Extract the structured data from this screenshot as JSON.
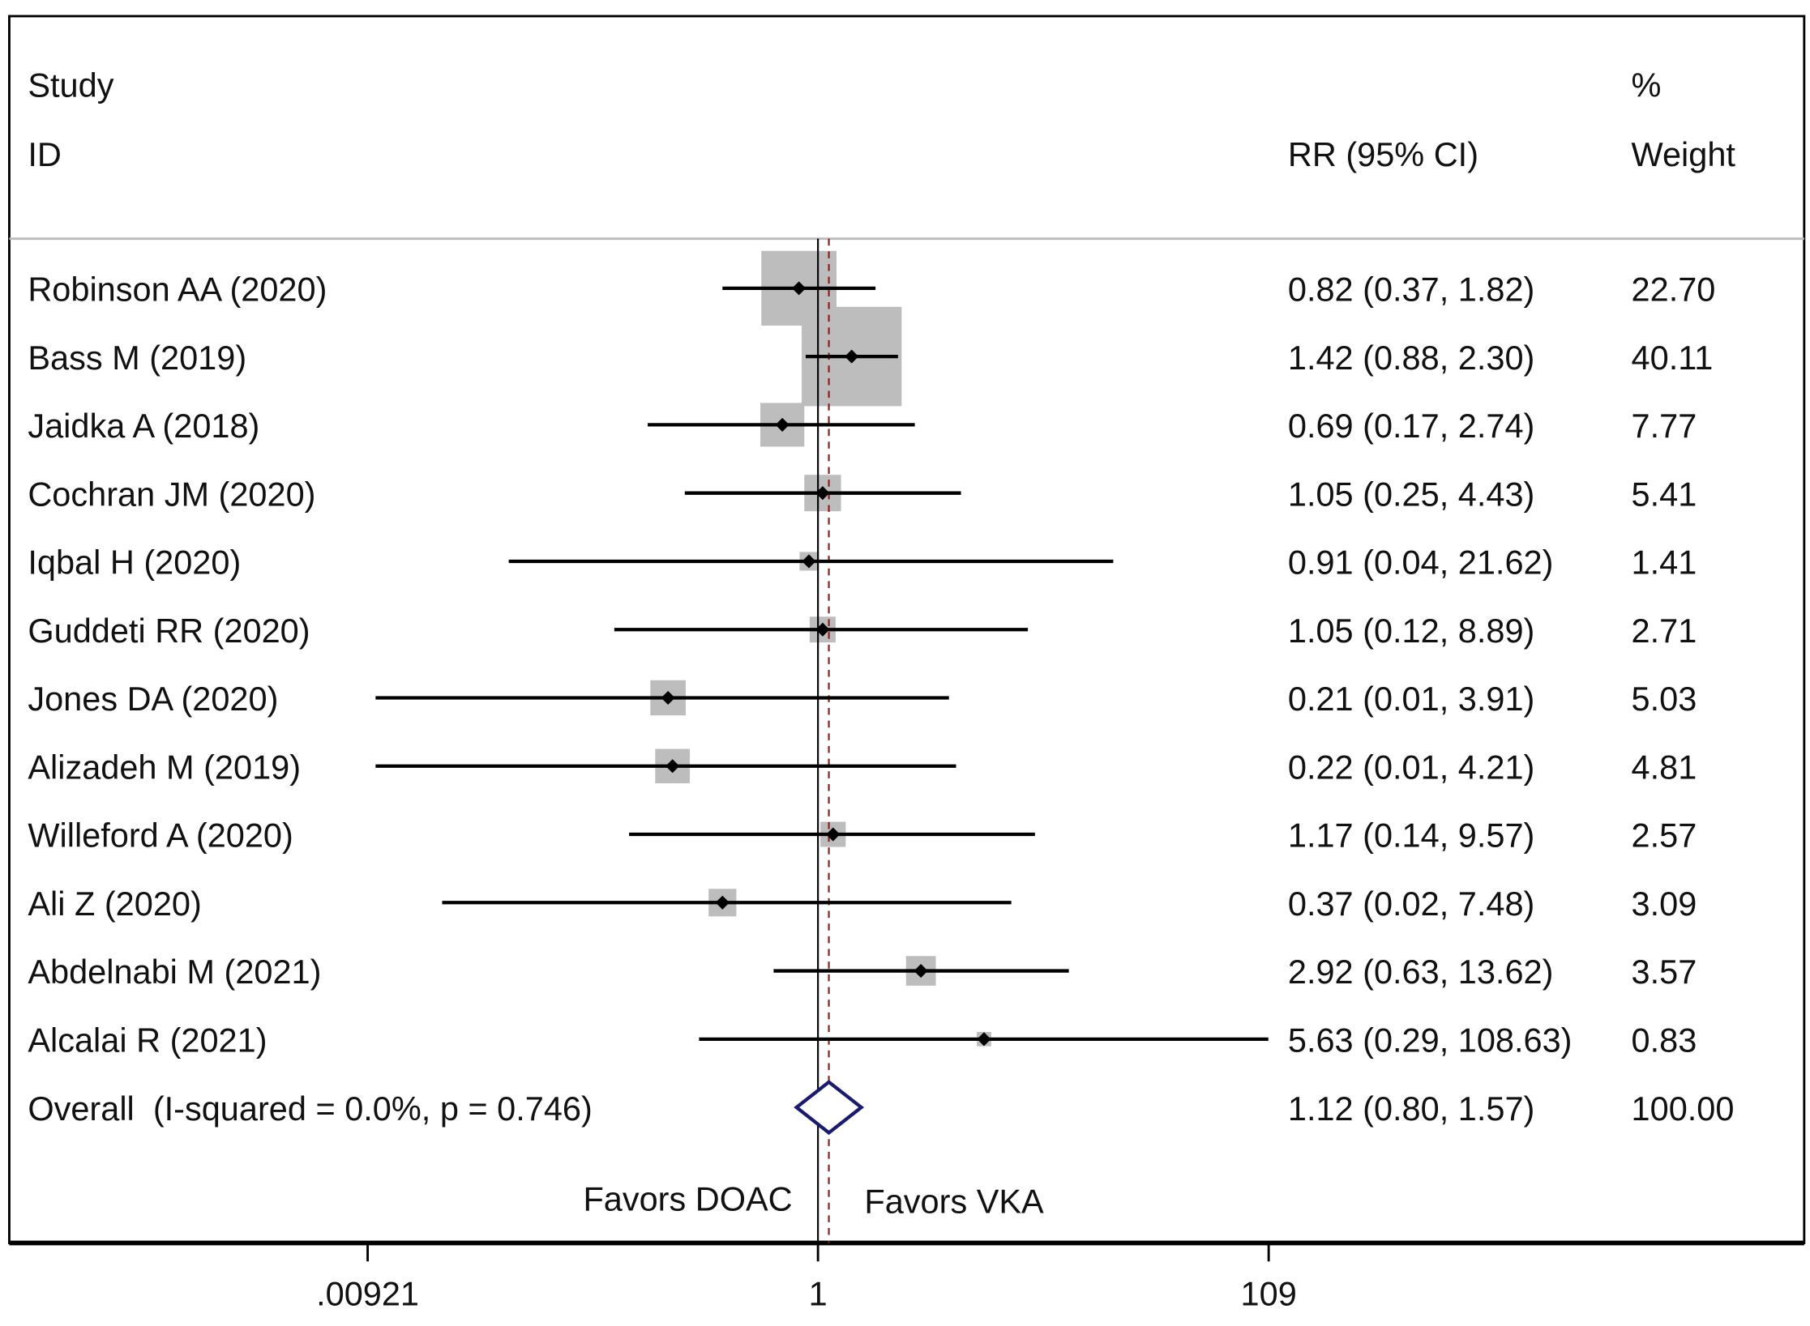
{
  "chart_data": {
    "type": "forest",
    "headers": {
      "study_line1": "Study",
      "study_line2": "ID",
      "rr": "RR (95% CI)",
      "weight_line1": "%",
      "weight_line2": "Weight"
    },
    "studies": [
      {
        "id": "Robinson AA (2020)",
        "rr": 0.82,
        "lo": 0.37,
        "hi": 1.82,
        "label": "0.82 (0.37, 1.82)",
        "weight": "22.70"
      },
      {
        "id": "Bass M (2019)",
        "rr": 1.42,
        "lo": 0.88,
        "hi": 2.3,
        "label": "1.42 (0.88, 2.30)",
        "weight": "40.11"
      },
      {
        "id": "Jaidka A (2018)",
        "rr": 0.69,
        "lo": 0.17,
        "hi": 2.74,
        "label": "0.69 (0.17, 2.74)",
        "weight": "7.77"
      },
      {
        "id": "Cochran JM (2020)",
        "rr": 1.05,
        "lo": 0.25,
        "hi": 4.43,
        "label": "1.05 (0.25, 4.43)",
        "weight": "5.41"
      },
      {
        "id": "Iqbal H (2020)",
        "rr": 0.91,
        "lo": 0.04,
        "hi": 21.62,
        "label": "0.91 (0.04, 21.62)",
        "weight": "1.41"
      },
      {
        "id": "Guddeti RR (2020)",
        "rr": 1.05,
        "lo": 0.12,
        "hi": 8.89,
        "label": "1.05 (0.12, 8.89)",
        "weight": "2.71"
      },
      {
        "id": "Jones DA (2020)",
        "rr": 0.21,
        "lo": 0.01,
        "hi": 3.91,
        "label": "0.21 (0.01, 3.91)",
        "weight": "5.03"
      },
      {
        "id": "Alizadeh M (2019)",
        "rr": 0.22,
        "lo": 0.01,
        "hi": 4.21,
        "label": "0.22 (0.01, 4.21)",
        "weight": "4.81"
      },
      {
        "id": "Willeford A (2020)",
        "rr": 1.17,
        "lo": 0.14,
        "hi": 9.57,
        "label": "1.17 (0.14, 9.57)",
        "weight": "2.57"
      },
      {
        "id": "Ali Z (2020)",
        "rr": 0.37,
        "lo": 0.02,
        "hi": 7.48,
        "label": "0.37 (0.02, 7.48)",
        "weight": "3.09"
      },
      {
        "id": "Abdelnabi M (2021)",
        "rr": 2.92,
        "lo": 0.63,
        "hi": 13.62,
        "label": "2.92 (0.63, 13.62)",
        "weight": "3.57"
      },
      {
        "id": "Alcalai R (2021)",
        "rr": 5.63,
        "lo": 0.29,
        "hi": 108.63,
        "label": "5.63 (0.29, 108.63)",
        "weight": "0.83"
      }
    ],
    "overall": {
      "id": "Overall  (I-squared = 0.0%, p = 0.746)",
      "rr": 1.12,
      "lo": 0.8,
      "hi": 1.57,
      "label": "1.12 (0.80, 1.57)",
      "weight": "100.00"
    },
    "favors_left": "Favors DOAC",
    "favors_right": "Favors VKA",
    "x_ticks": [
      {
        "value": 0.00921,
        "label": ".00921"
      },
      {
        "value": 1,
        "label": "1"
      },
      {
        "value": 109,
        "label": "109"
      }
    ],
    "xlim": [
      0.00921,
      109
    ],
    "x_scale": "log",
    "colors": {
      "square": "#bdbdbd",
      "diamond": "#1a1a6e",
      "dashed_line": "#8b1a1a",
      "line": "#000000"
    }
  }
}
